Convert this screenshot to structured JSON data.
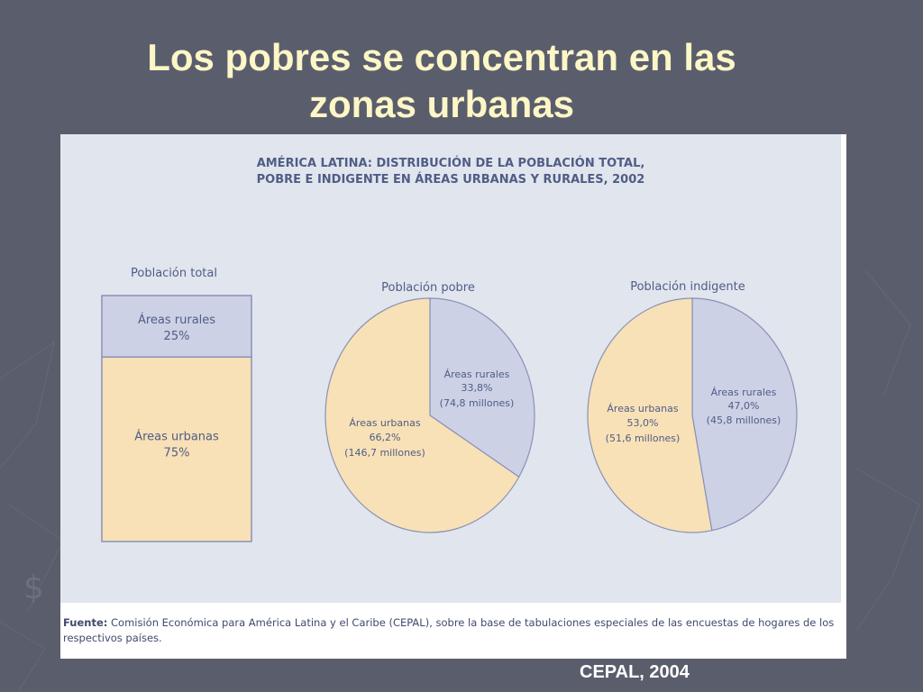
{
  "slide": {
    "title_line1": "Los pobres se concentran en las",
    "title_line2": "zonas urbanas",
    "credit": "CEPAL, 2004"
  },
  "figure": {
    "title_line1": "AMÉRICA LATINA: DISTRIBUCIÓN DE LA POBLACIÓN TOTAL,",
    "title_line2": "POBRE E INDIGENTE EN ÁREAS URBANAS Y RURALES, 2002",
    "source_label": "Fuente:",
    "source_text": " Comisión Económica para América Latina y el Caribe (CEPAL), sobre la base de tabulaciones especiales de las encuestas de hogares de los respectivos países."
  },
  "colors": {
    "urban": "#f8e1b6",
    "rural": "#ccd1e6",
    "outline": "#8a92b4",
    "text": "#4f5d86"
  },
  "chart_data": [
    {
      "type": "bar",
      "title": "Población total",
      "stacked": true,
      "segments": [
        {
          "name": "Áreas rurales",
          "value": 25,
          "label": "25%"
        },
        {
          "name": "Áreas urbanas",
          "value": 75,
          "label": "75%"
        }
      ]
    },
    {
      "type": "pie",
      "title": "Población pobre",
      "slices": [
        {
          "name": "Áreas rurales",
          "value": 33.8,
          "pct": "33,8%",
          "detail": "(74,8 millones)"
        },
        {
          "name": "Áreas urbanas",
          "value": 66.2,
          "pct": "66,2%",
          "detail": "(146,7 millones)"
        }
      ]
    },
    {
      "type": "pie",
      "title": "Población indigente",
      "slices": [
        {
          "name": "Áreas rurales",
          "value": 47.0,
          "pct": "47,0%",
          "detail": "(45,8 millones)"
        },
        {
          "name": "Áreas urbanas",
          "value": 53.0,
          "pct": "53,0%",
          "detail": "(51,6 millones)"
        }
      ]
    }
  ]
}
